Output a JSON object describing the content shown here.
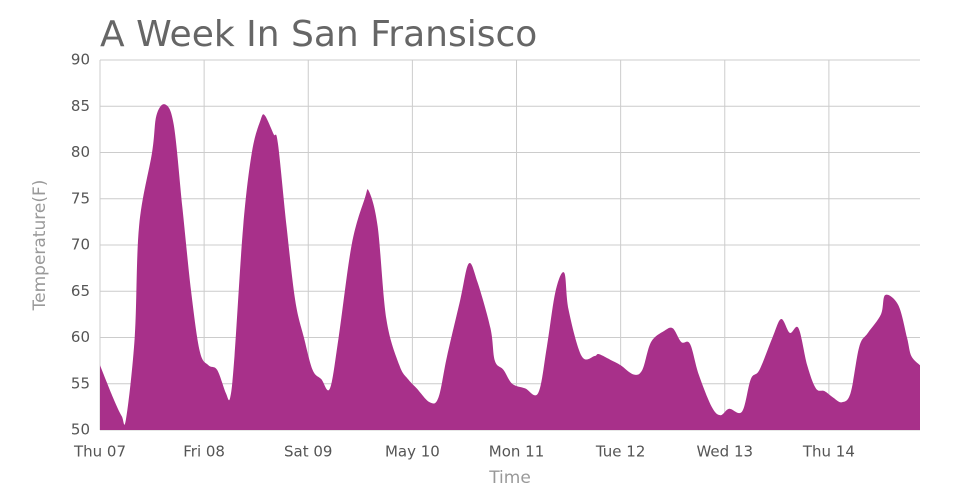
{
  "chart_data": {
    "type": "area",
    "title": "A Week In San Fransisco",
    "x_label": "Time",
    "y_label": "Temperature(F)",
    "x": [
      0,
      3,
      5,
      6,
      8,
      9,
      12,
      13,
      15,
      17,
      19,
      21,
      23,
      25,
      27,
      29,
      30,
      31,
      33,
      35,
      37,
      38,
      40,
      41,
      43,
      45,
      47,
      49,
      51,
      53,
      55,
      58,
      61,
      62,
      64,
      66,
      69,
      71,
      73,
      76,
      78,
      80,
      83,
      85,
      87,
      90,
      91,
      93,
      95,
      98,
      101,
      103,
      105,
      107,
      108,
      111,
      114,
      115,
      118,
      120,
      123,
      125,
      127,
      130,
      132,
      134,
      136,
      138,
      141,
      143,
      145,
      148,
      150,
      152,
      155,
      157,
      159,
      161,
      163,
      165,
      167,
      169,
      171,
      173,
      175,
      177,
      180,
      181,
      184,
      186,
      187,
      189
    ],
    "series": [
      {
        "name": "Temperature",
        "color": "#a8308a",
        "values": [
          57,
          53.5,
          51.5,
          51.2,
          60,
          72,
          80,
          84,
          85.2,
          83,
          74,
          65,
          58.5,
          57,
          56.5,
          54,
          53.5,
          58,
          72,
          80,
          83.5,
          84,
          82,
          81,
          72,
          64,
          60,
          56.5,
          55.5,
          54.5,
          60,
          70,
          75,
          75.8,
          72,
          62,
          57,
          55.5,
          54.5,
          53,
          53.5,
          58,
          64,
          68,
          66,
          61,
          57.5,
          56.5,
          55,
          54.5,
          54,
          59,
          65,
          67,
          63,
          58,
          58,
          58.2,
          57.5,
          57,
          56,
          56.5,
          59.5,
          60.7,
          61,
          59.5,
          59.3,
          56,
          52.5,
          51.6,
          52.3,
          52,
          55.5,
          56.5,
          60,
          62,
          60.5,
          61,
          57,
          54.5,
          54.2,
          53.5,
          53,
          54,
          59,
          60.5,
          62.5,
          64.6,
          63.5,
          60,
          58,
          57
        ]
      }
    ],
    "xlim": [
      0,
      189
    ],
    "ylim": [
      50,
      90
    ],
    "xticks": [
      {
        "value": 0,
        "label": "Thu 07"
      },
      {
        "value": 24,
        "label": "Fri 08"
      },
      {
        "value": 48,
        "label": "Sat 09"
      },
      {
        "value": 72,
        "label": "May 10"
      },
      {
        "value": 96,
        "label": "Mon 11"
      },
      {
        "value": 120,
        "label": "Tue 12"
      },
      {
        "value": 144,
        "label": "Wed 13"
      },
      {
        "value": 168,
        "label": "Thu 14"
      }
    ],
    "yticks": [
      50,
      55,
      60,
      65,
      70,
      75,
      80,
      85,
      90
    ],
    "grid": true
  }
}
